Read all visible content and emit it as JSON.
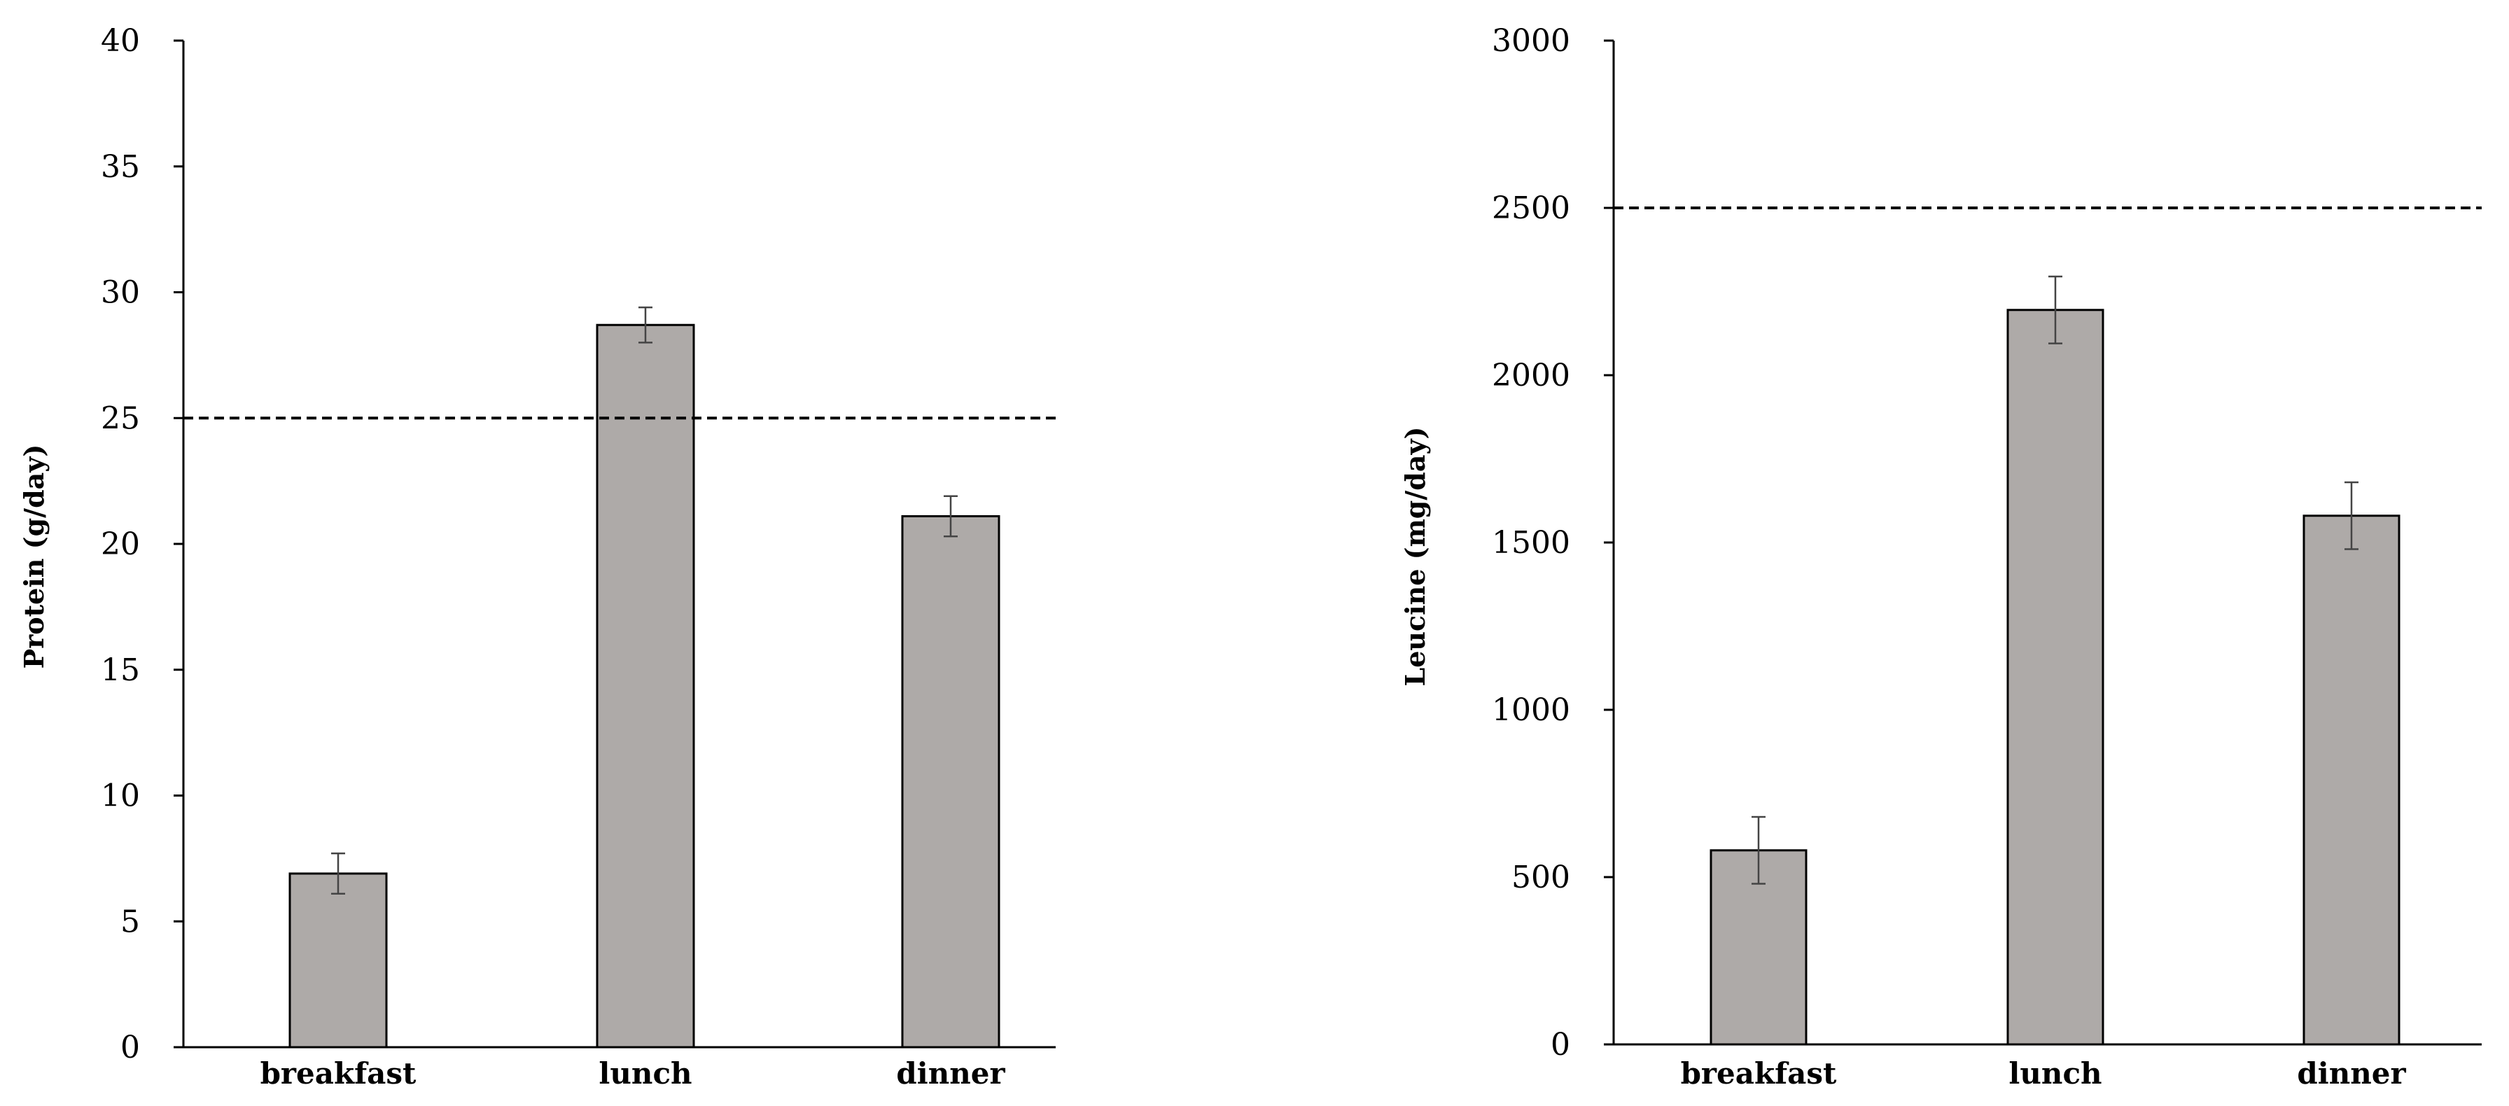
{
  "chart_data": [
    {
      "type": "bar",
      "title": "",
      "xlabel": "",
      "ylabel": "Protein (g/day)",
      "categories": [
        "breakfast",
        "lunch",
        "dinner"
      ],
      "values": [
        6.9,
        28.7,
        21.1
      ],
      "errors": [
        0.8,
        0.7,
        0.8
      ],
      "ylim": [
        0,
        40
      ],
      "yticks": [
        0,
        5,
        10,
        15,
        20,
        25,
        30,
        35,
        40
      ],
      "reference_line": 25,
      "bar_color": "#aeaaa8",
      "grid": false
    },
    {
      "type": "bar",
      "title": "",
      "xlabel": "",
      "ylabel": "Leucine (mg/day)",
      "categories": [
        "breakfast",
        "lunch",
        "dinner"
      ],
      "values": [
        580,
        2195,
        1580
      ],
      "errors": [
        100,
        100,
        100
      ],
      "ylim": [
        0,
        3000
      ],
      "yticks": [
        0,
        500,
        1000,
        1500,
        2000,
        2500,
        3000
      ],
      "reference_line": 2500,
      "bar_color": "#aeaaa8",
      "grid": false
    }
  ]
}
